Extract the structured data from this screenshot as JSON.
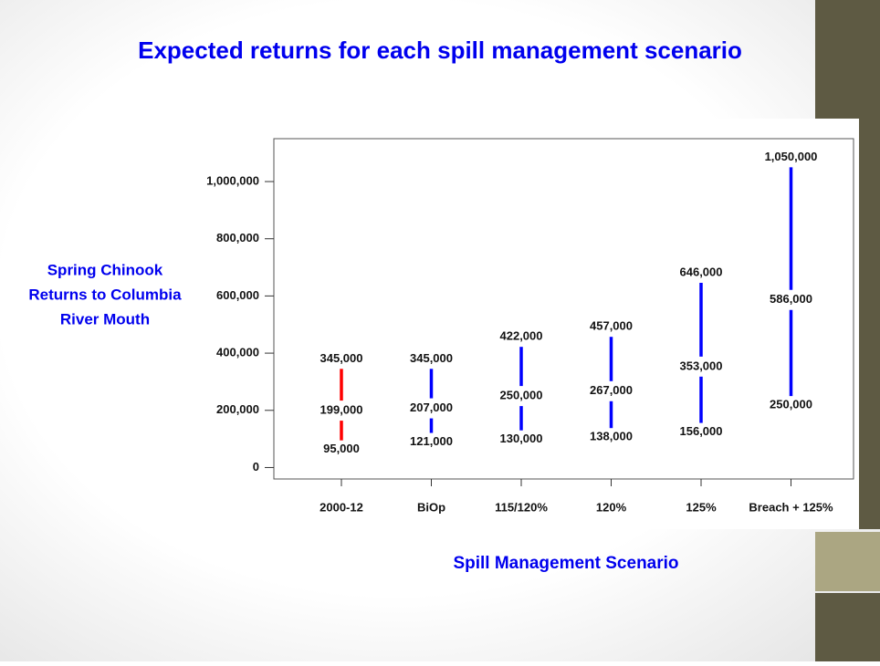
{
  "chart_data": {
    "type": "range",
    "title": "Expected returns for each spill management scenario",
    "ylabel": [
      "Spring Chinook",
      "Returns to Columbia",
      "River Mouth"
    ],
    "xlabel": "Spill Management Scenario",
    "categories": [
      "2000-12",
      "BiOp",
      "115/120%",
      "120%",
      "125%",
      "Breach + 125%"
    ],
    "colors": [
      "#ff0000",
      "#0000ff",
      "#0000ff",
      "#0000ff",
      "#0000ff",
      "#0000ff"
    ],
    "low": {
      "values": [
        95000,
        121000,
        130000,
        138000,
        156000,
        250000
      ],
      "value_labels": [
        "95,000",
        "121,000",
        "130,000",
        "138,000",
        "156,000",
        "250,000"
      ]
    },
    "mid": {
      "values": [
        199000,
        207000,
        250000,
        267000,
        353000,
        586000
      ],
      "value_labels": [
        "199,000",
        "207,000",
        "250,000",
        "267,000",
        "353,000",
        "586,000"
      ]
    },
    "high": {
      "values": [
        345000,
        345000,
        422000,
        457000,
        646000,
        1050000
      ],
      "value_labels": [
        "345,000",
        "345,000",
        "422,000",
        "457,000",
        "646,000",
        "1,050,000"
      ]
    },
    "ylim": [
      -40000,
      1150000
    ],
    "yticks": [
      {
        "value": 0,
        "label": "0"
      },
      {
        "value": 200000,
        "label": "200,000"
      },
      {
        "value": 400000,
        "label": "400,000"
      },
      {
        "value": 600000,
        "label": "600,000"
      },
      {
        "value": 800000,
        "label": "800,000"
      },
      {
        "value": 1000000,
        "label": "1,000,000"
      }
    ]
  }
}
